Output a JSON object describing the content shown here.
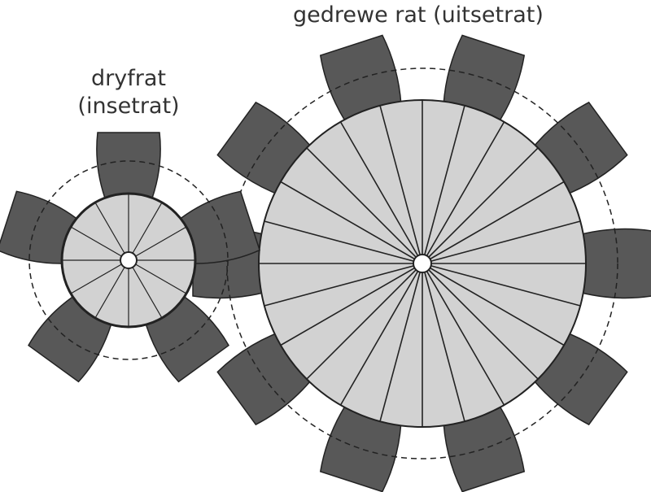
{
  "labels": {
    "driven_gear": "gedrewe rat (uitsetrat)",
    "driver_gear_line1": "dryfrat",
    "driver_gear_line2": "(insetrat)"
  },
  "gears": {
    "driver": {
      "teeth": 5,
      "spokes": 12
    },
    "driven": {
      "teeth": 10,
      "spokes": 24
    }
  },
  "colors": {
    "tooth_fill": "#585858",
    "body_fill": "#d2d2d2",
    "outline": "#222222",
    "text": "#333333"
  }
}
